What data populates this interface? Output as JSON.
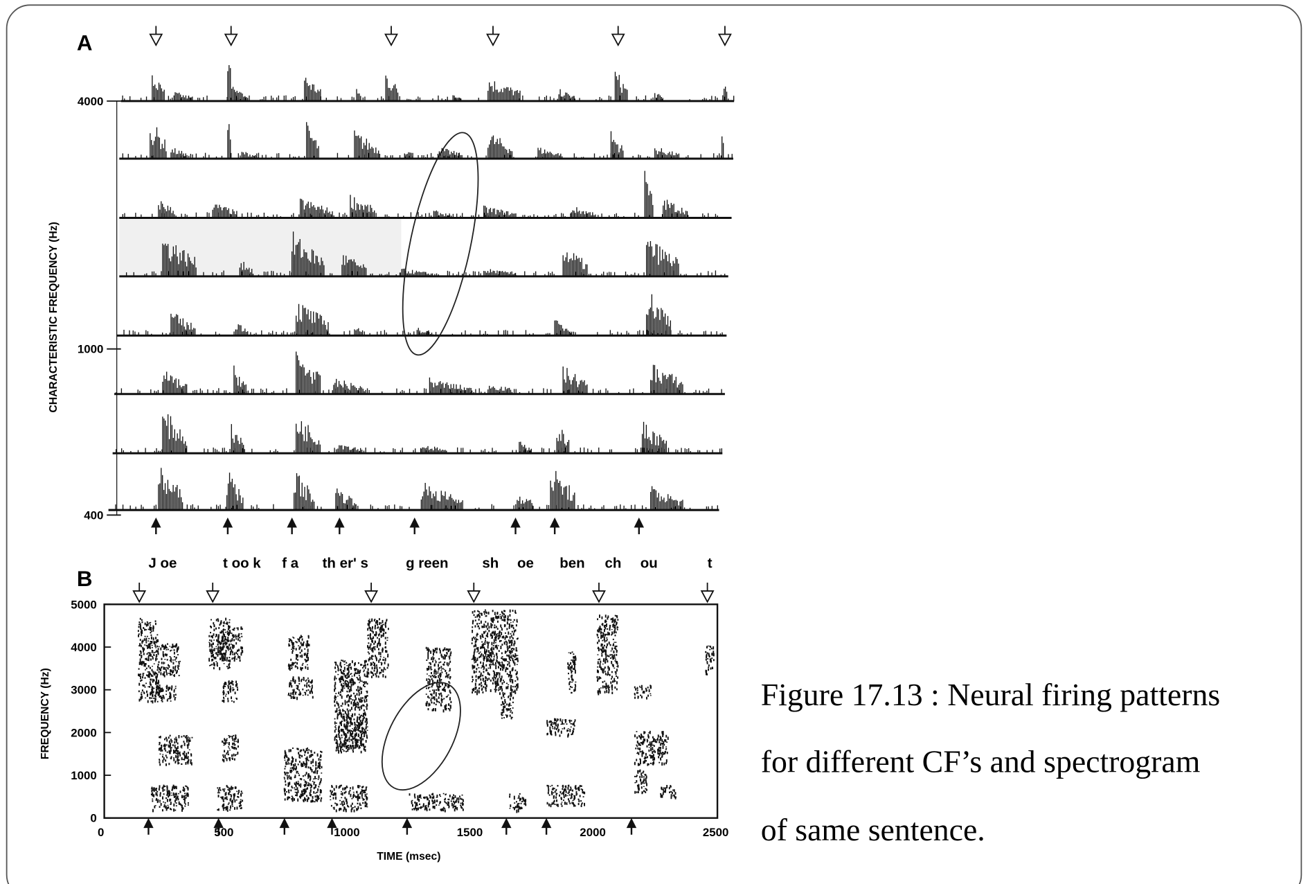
{
  "slide": {
    "figure": {
      "panel_a": {
        "label": "A",
        "y_axis_label": "CHARACTERISTIC FREQUENCY (Hz)",
        "y_ticks": [
          4000,
          1000,
          400
        ]
      },
      "phonemes": [
        "J oe",
        "t oo k",
        "f a",
        "th er' s",
        "g reen",
        "sh",
        "oe",
        "ben",
        "ch",
        "ou",
        "t"
      ],
      "panel_b": {
        "label": "B",
        "y_axis_label": "FREQUENCY (Hz)",
        "x_axis_label": "TIME (msec)",
        "y_ticks": [
          5000,
          4000,
          3000,
          2000,
          1000,
          0
        ],
        "x_ticks": [
          0,
          500,
          1000,
          1500,
          2000,
          2500
        ]
      }
    },
    "caption": [
      "Figure 17.13 : Neural firing patterns",
      "for different CF’s and spectrogram",
      "of same sentence."
    ]
  }
}
